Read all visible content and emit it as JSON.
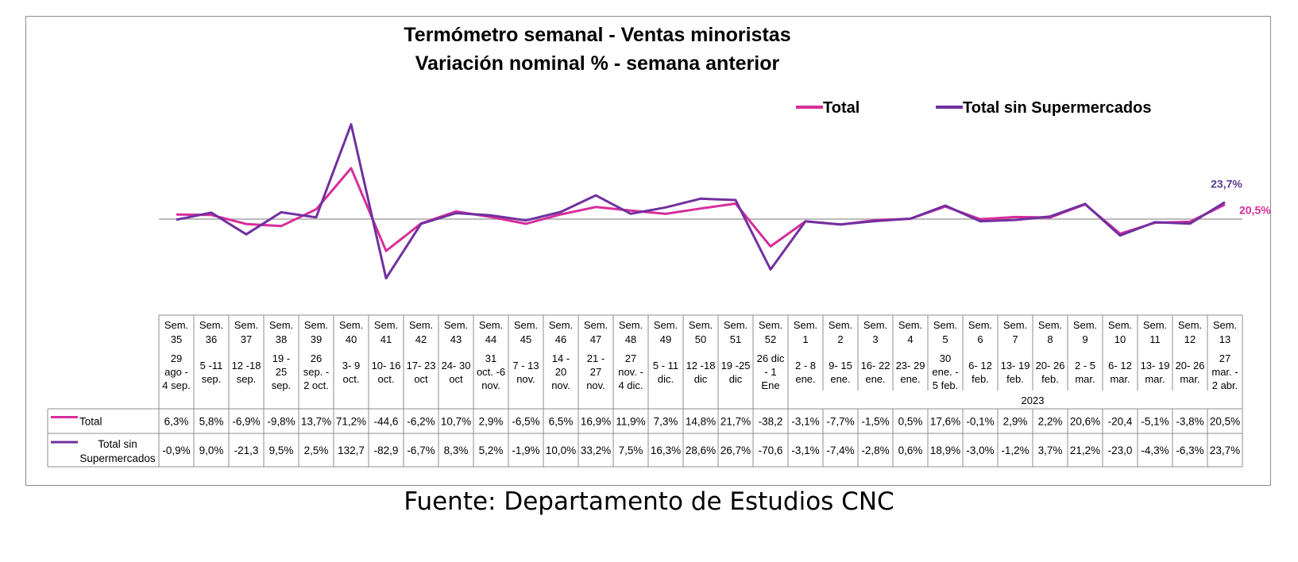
{
  "chart_data": {
    "type": "line",
    "title": [
      "Termómetro semanal - Ventas minoristas",
      "Variación nominal % - semana anterior"
    ],
    "legend_position": "top-right",
    "year_label": "2023",
    "categories": [
      {
        "week": "Sem. 35",
        "dates": [
          "29",
          "ago -",
          "4 sep."
        ]
      },
      {
        "week": "Sem. 36",
        "dates": [
          "5 -11",
          "sep."
        ]
      },
      {
        "week": "Sem. 37",
        "dates": [
          "12 -18",
          "sep."
        ]
      },
      {
        "week": "Sem. 38",
        "dates": [
          "19 -",
          "25",
          "sep."
        ]
      },
      {
        "week": "Sem. 39",
        "dates": [
          "26",
          "sep. -",
          "2 oct."
        ]
      },
      {
        "week": "Sem. 40",
        "dates": [
          "3- 9",
          "oct."
        ]
      },
      {
        "week": "Sem. 41",
        "dates": [
          "10- 16",
          "oct."
        ]
      },
      {
        "week": "Sem. 42",
        "dates": [
          "17- 23",
          "oct"
        ]
      },
      {
        "week": "Sem. 43",
        "dates": [
          "24- 30",
          "oct"
        ]
      },
      {
        "week": "Sem. 44",
        "dates": [
          "31",
          "oct. -6",
          "nov."
        ]
      },
      {
        "week": "Sem. 45",
        "dates": [
          "7 - 13",
          "nov."
        ]
      },
      {
        "week": "Sem. 46",
        "dates": [
          "14 -",
          "20",
          "nov."
        ]
      },
      {
        "week": "Sem. 47",
        "dates": [
          "21 -",
          "27",
          "nov."
        ]
      },
      {
        "week": "Sem. 48",
        "dates": [
          "27",
          "nov. -",
          "4 dic."
        ]
      },
      {
        "week": "Sem. 49",
        "dates": [
          "5 - 11",
          "dic."
        ]
      },
      {
        "week": "Sem. 50",
        "dates": [
          "12 -18",
          "dic"
        ]
      },
      {
        "week": "Sem. 51",
        "dates": [
          "19 -25",
          "dic"
        ]
      },
      {
        "week": "Sem. 52",
        "dates": [
          "26 dic",
          "- 1",
          "Ene"
        ]
      },
      {
        "week": "Sem. 1",
        "dates": [
          "2 - 8",
          "ene."
        ]
      },
      {
        "week": "Sem. 2",
        "dates": [
          "9- 15",
          "ene."
        ]
      },
      {
        "week": "Sem. 3",
        "dates": [
          "16- 22",
          "ene."
        ]
      },
      {
        "week": "Sem. 4",
        "dates": [
          "23- 29",
          "ene."
        ]
      },
      {
        "week": "Sem. 5",
        "dates": [
          "30",
          "ene. -",
          "5 feb."
        ]
      },
      {
        "week": "Sem. 6",
        "dates": [
          "6- 12",
          "feb."
        ]
      },
      {
        "week": "Sem. 7",
        "dates": [
          "13- 19",
          "feb."
        ]
      },
      {
        "week": "Sem. 8",
        "dates": [
          "20- 26",
          "feb."
        ]
      },
      {
        "week": "Sem. 9",
        "dates": [
          "2 - 5",
          "mar."
        ]
      },
      {
        "week": "Sem. 10",
        "dates": [
          "6- 12",
          "mar."
        ]
      },
      {
        "week": "Sem. 11",
        "dates": [
          "13- 19",
          "mar."
        ]
      },
      {
        "week": "Sem. 12",
        "dates": [
          "20- 26",
          "mar."
        ]
      },
      {
        "week": "Sem. 13",
        "dates": [
          "27",
          "mar. -",
          "2 abr."
        ]
      }
    ],
    "series": [
      {
        "name": "Total",
        "color": "#d62e9a",
        "values": [
          6.3,
          5.8,
          -6.9,
          -9.8,
          13.7,
          71.2,
          -44.6,
          -6.2,
          10.7,
          2.9,
          -6.5,
          6.5,
          16.9,
          11.9,
          7.3,
          14.8,
          21.7,
          -38.2,
          -3.1,
          -7.7,
          -1.5,
          0.5,
          17.6,
          -0.1,
          2.9,
          2.2,
          20.6,
          -20.4,
          -5.1,
          -3.8,
          20.5
        ],
        "labels": [
          "6,3%",
          "5,8%",
          "-6,9%",
          "-9,8%",
          "13,7%",
          "71,2%",
          "-44,6",
          "-6,2%",
          "10,7%",
          "2,9%",
          "-6,5%",
          "6,5%",
          "16,9%",
          "11,9%",
          "7,3%",
          "14,8%",
          "21,7%",
          "-38,2",
          "-3,1%",
          "-7,7%",
          "-1,5%",
          "0,5%",
          "17,6%",
          "-0,1%",
          "2,9%",
          "2,2%",
          "20,6%",
          "-20,4",
          "-5,1%",
          "-3,8%",
          "20,5%"
        ],
        "end_label": "20,5%",
        "end_label_color": "#d62e9a"
      },
      {
        "name": "Total sin Supermercados",
        "color": "#7030a0",
        "values": [
          -0.9,
          9.0,
          -21.3,
          9.5,
          2.5,
          132.7,
          -82.9,
          -6.7,
          8.3,
          5.2,
          -1.9,
          10.0,
          33.2,
          7.5,
          16.3,
          28.6,
          26.7,
          -70.6,
          -3.1,
          -7.4,
          -2.8,
          0.6,
          18.9,
          -3.0,
          -1.2,
          3.7,
          21.2,
          -23.0,
          -4.3,
          -6.3,
          23.7
        ],
        "labels": [
          "-0,9%",
          "9,0%",
          "-21,3",
          "9,5%",
          "2,5%",
          "132,7",
          "-82,9",
          "-6,7%",
          "8,3%",
          "5,2%",
          "-1,9%",
          "10,0%",
          "33,2%",
          "7,5%",
          "16,3%",
          "28,6%",
          "26,7%",
          "-70,6",
          "-3,1%",
          "-7,4%",
          "-2,8%",
          "0,6%",
          "18,9%",
          "-3,0%",
          "-1,2%",
          "3,7%",
          "21,2%",
          "-23,0",
          "-4,3%",
          "-6,3%",
          "23,7%"
        ],
        "end_label": "23,7%",
        "end_label_color": "#5b3c8c"
      }
    ],
    "table_row_labels": [
      "Total",
      "Total sin\nSupermercados"
    ]
  },
  "footer": {
    "source": "Fuente: Departamento de Estudios CNC"
  }
}
